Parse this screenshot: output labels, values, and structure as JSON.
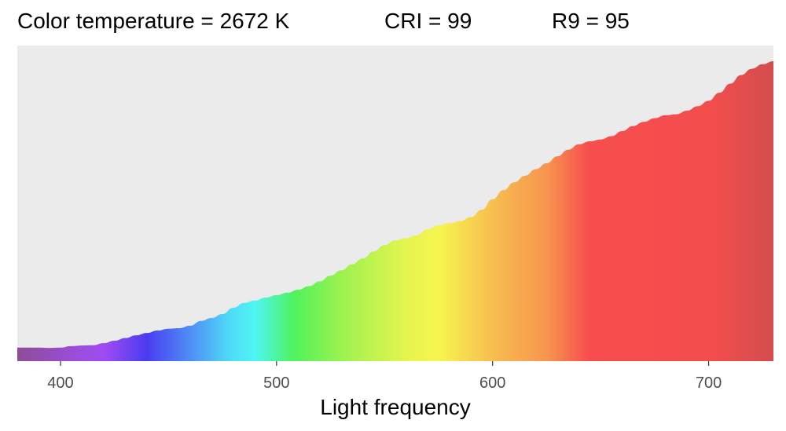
{
  "header": {
    "color_temperature": "Color temperature = 2672 K",
    "cri": "CRI = 99",
    "r9": "R9 = 95"
  },
  "chart_data": {
    "type": "area",
    "title": "",
    "xlabel": "Light frequency",
    "ylabel": "",
    "xlim": [
      380,
      730
    ],
    "ylim": [
      0,
      1
    ],
    "x_ticks": [
      400,
      500,
      600,
      700
    ],
    "x_tick_labels": [
      "400",
      "500",
      "600",
      "700"
    ],
    "panel_background": "#ebebeb",
    "grid": false,
    "fill": "spectral gradient by wavelength",
    "x": [
      380,
      390,
      395,
      400,
      405,
      410,
      415,
      420,
      425,
      430,
      435,
      440,
      445,
      450,
      455,
      460,
      465,
      470,
      475,
      480,
      485,
      490,
      495,
      500,
      505,
      510,
      515,
      520,
      525,
      530,
      535,
      540,
      545,
      550,
      555,
      560,
      565,
      570,
      575,
      580,
      585,
      590,
      595,
      600,
      605,
      610,
      615,
      620,
      625,
      630,
      635,
      640,
      645,
      650,
      655,
      660,
      665,
      670,
      675,
      680,
      685,
      690,
      695,
      700,
      705,
      710,
      715,
      720,
      725,
      730
    ],
    "y": [
      0.045,
      0.045,
      0.044,
      0.045,
      0.05,
      0.052,
      0.053,
      0.06,
      0.068,
      0.077,
      0.086,
      0.094,
      0.102,
      0.108,
      0.11,
      0.118,
      0.134,
      0.144,
      0.157,
      0.178,
      0.194,
      0.202,
      0.212,
      0.22,
      0.228,
      0.238,
      0.25,
      0.266,
      0.285,
      0.303,
      0.323,
      0.343,
      0.366,
      0.387,
      0.403,
      0.41,
      0.42,
      0.44,
      0.453,
      0.46,
      0.467,
      0.48,
      0.505,
      0.54,
      0.57,
      0.596,
      0.618,
      0.64,
      0.66,
      0.683,
      0.705,
      0.723,
      0.733,
      0.739,
      0.75,
      0.767,
      0.784,
      0.798,
      0.81,
      0.82,
      0.823,
      0.835,
      0.85,
      0.868,
      0.895,
      0.925,
      0.954,
      0.975,
      0.99,
      1.0
    ],
    "spectrum_colors": [
      {
        "wavelength": 380,
        "color": "#8c4d96"
      },
      {
        "wavelength": 405,
        "color": "#9a4dd6"
      },
      {
        "wavelength": 420,
        "color": "#a04cf2"
      },
      {
        "wavelength": 440,
        "color": "#4a3cf0"
      },
      {
        "wavelength": 460,
        "color": "#4f8ef7"
      },
      {
        "wavelength": 478,
        "color": "#4fd9f7"
      },
      {
        "wavelength": 490,
        "color": "#4ff5f4"
      },
      {
        "wavelength": 508,
        "color": "#4ff25d"
      },
      {
        "wavelength": 530,
        "color": "#9cf24f"
      },
      {
        "wavelength": 560,
        "color": "#e5f44f"
      },
      {
        "wavelength": 575,
        "color": "#f7f54f"
      },
      {
        "wavelength": 600,
        "color": "#f7be4f"
      },
      {
        "wavelength": 625,
        "color": "#f7954f"
      },
      {
        "wavelength": 645,
        "color": "#f74d4d"
      },
      {
        "wavelength": 700,
        "color": "#f44d4d"
      },
      {
        "wavelength": 730,
        "color": "#d44d4d"
      }
    ]
  }
}
